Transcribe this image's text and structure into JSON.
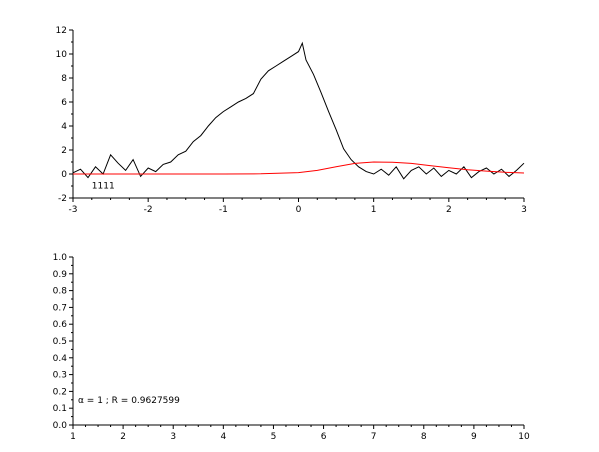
{
  "chart_data": [
    {
      "type": "line",
      "title": "",
      "xlabel": "",
      "ylabel": "",
      "xlim": [
        -3,
        3
      ],
      "ylim": [
        -2,
        12
      ],
      "xticks": [
        "-3",
        "-2",
        "-1",
        "0",
        "1",
        "2",
        "3"
      ],
      "yticks": [
        "-2",
        "0",
        "2",
        "4",
        "6",
        "8",
        "10",
        "12"
      ],
      "annotation": "1111",
      "grid": false,
      "series": [
        {
          "color": "#000000",
          "x": [
            -3.0,
            -2.9,
            -2.8,
            -2.7,
            -2.6,
            -2.5,
            -2.4,
            -2.3,
            -2.2,
            -2.1,
            -2.0,
            -1.9,
            -1.8,
            -1.7,
            -1.6,
            -1.5,
            -1.4,
            -1.3,
            -1.2,
            -1.1,
            -1.0,
            -0.9,
            -0.8,
            -0.7,
            -0.6,
            -0.5,
            -0.4,
            -0.3,
            -0.2,
            -0.1,
            0.0,
            0.05,
            0.1,
            0.2,
            0.3,
            0.4,
            0.5,
            0.6,
            0.7,
            0.8,
            0.9,
            1.0,
            1.1,
            1.2,
            1.3,
            1.4,
            1.5,
            1.6,
            1.7,
            1.8,
            1.9,
            2.0,
            2.1,
            2.2,
            2.3,
            2.4,
            2.5,
            2.6,
            2.7,
            2.8,
            2.9,
            3.0
          ],
          "y": [
            0.1,
            0.4,
            -0.3,
            0.6,
            0.0,
            1.6,
            0.9,
            0.3,
            1.2,
            -0.2,
            0.5,
            0.2,
            0.8,
            1.0,
            1.6,
            1.9,
            2.7,
            3.2,
            4.0,
            4.7,
            5.2,
            5.6,
            6.0,
            6.3,
            6.7,
            7.9,
            8.6,
            9.0,
            9.4,
            9.8,
            10.2,
            10.9,
            9.5,
            8.3,
            6.8,
            5.2,
            3.7,
            2.1,
            1.2,
            0.6,
            0.2,
            0.0,
            0.4,
            -0.1,
            0.6,
            -0.4,
            0.3,
            0.6,
            0.0,
            0.5,
            -0.2,
            0.3,
            0.0,
            0.6,
            -0.3,
            0.2,
            0.5,
            0.0,
            0.4,
            -0.2,
            0.3,
            0.9
          ]
        },
        {
          "color": "#ff0000",
          "x": [
            -3.0,
            -2.5,
            -2.0,
            -1.5,
            -1.0,
            -0.5,
            0.0,
            0.25,
            0.5,
            0.75,
            1.0,
            1.25,
            1.5,
            1.75,
            2.0,
            2.25,
            2.5,
            2.75,
            3.0
          ],
          "y": [
            0.0,
            0.0,
            0.0,
            0.0,
            0.0,
            0.02,
            0.12,
            0.3,
            0.6,
            0.88,
            1.0,
            0.98,
            0.88,
            0.7,
            0.52,
            0.36,
            0.24,
            0.14,
            0.08
          ]
        }
      ]
    },
    {
      "type": "line",
      "title": "",
      "xlabel": "",
      "ylabel": "",
      "xlim": [
        1,
        10
      ],
      "ylim": [
        0,
        1
      ],
      "xticks": [
        "1",
        "2",
        "3",
        "4",
        "5",
        "6",
        "7",
        "8",
        "9",
        "10"
      ],
      "yticks": [
        "0.0",
        "0.1",
        "0.2",
        "0.3",
        "0.4",
        "0.5",
        "0.6",
        "0.7",
        "0.8",
        "0.9",
        "1.0"
      ],
      "annotation": "α = 1 ; R = 0.9627599",
      "grid": false,
      "series": []
    }
  ]
}
